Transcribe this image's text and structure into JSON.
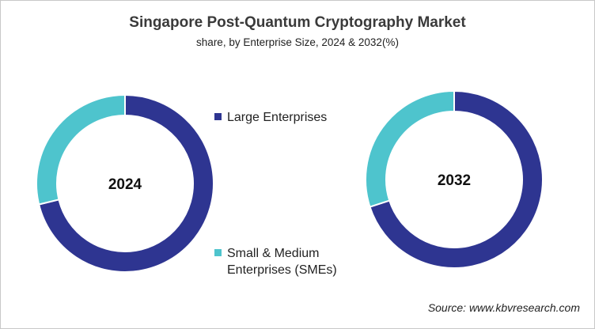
{
  "chart_data": {
    "type": "donut",
    "title": "Singapore Post-Quantum Cryptography Market",
    "subtitle": "share, by Enterprise Size, 2024 & 2032(%)",
    "categories": [
      "Large Enterprises",
      "Small & Medium Enterprises (SMEs)"
    ],
    "colors": [
      "#2e3591",
      "#4ec4cd"
    ],
    "charts": [
      {
        "label": "2024",
        "values": [
          71.2,
          28.8
        ]
      },
      {
        "label": "2032",
        "values": [
          70.0,
          30.0
        ]
      }
    ],
    "legend": {
      "items": [
        {
          "label": "Large Enterprises",
          "lines": [
            "Large Enterprises"
          ]
        },
        {
          "label": "Small & Medium Enterprises (SMEs)",
          "lines": [
            "Small & Medium",
            "Enterprises (SMEs)"
          ]
        }
      ],
      "placement": "center"
    },
    "source": "Source: www.kbvresearch.com"
  }
}
